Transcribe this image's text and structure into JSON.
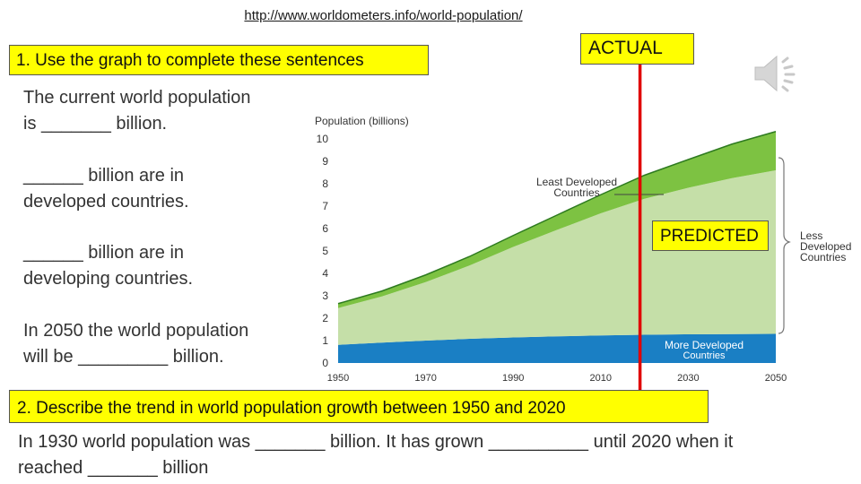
{
  "url_text": "http://www.worldometers.info/world-population/",
  "question1": "1. Use the graph to complete these sentences",
  "actual_label": "ACTUAL",
  "predicted_label": "PREDICTED",
  "sentences": [
    {
      "line1": "The current world population",
      "line2": "is _______ billion."
    },
    {
      "line1": "______ billion are in",
      "line2": "developed countries."
    },
    {
      "line1": "______ billion are in",
      "line2": "developing countries."
    },
    {
      "line1": "In 2050 the world population",
      "line2": "will be _________ billion."
    }
  ],
  "question2": "2.  Describe the trend in world population growth between 1950 and 2020",
  "bottom_line1": "In 1930 world population was _______ billion. It has grown __________ until 2020 when it",
  "bottom_line2": "reached _______ billion",
  "speaker_icon": "speaker-icon",
  "chart_data": {
    "type": "area",
    "ylabel": "Population (billions)",
    "xlabel": "",
    "x": [
      1950,
      1960,
      1970,
      1980,
      1990,
      2000,
      2010,
      2020,
      2030,
      2040,
      2050
    ],
    "xticks": [
      "1950",
      "1970",
      "1990",
      "2010",
      "2030",
      "2050"
    ],
    "yticks": [
      "0",
      "1",
      "2",
      "3",
      "4",
      "5",
      "6",
      "7",
      "8",
      "9",
      "10"
    ],
    "xlim": [
      1950,
      2050
    ],
    "ylim": [
      0,
      10
    ],
    "series": [
      {
        "name": "More Developed Countries",
        "color": "#1a7fc4",
        "values": [
          0.81,
          0.91,
          1.0,
          1.08,
          1.14,
          1.19,
          1.23,
          1.26,
          1.28,
          1.29,
          1.3
        ]
      },
      {
        "name": "Less Developed Countries",
        "color": "#c5dfa8",
        "values": [
          1.64,
          2.06,
          2.61,
          3.27,
          4.04,
          4.75,
          5.45,
          6.07,
          6.54,
          6.96,
          7.3
        ]
      },
      {
        "name": "Least Developed Countries",
        "color": "#7dc242",
        "values": [
          0.2,
          0.24,
          0.32,
          0.4,
          0.51,
          0.66,
          0.83,
          1.05,
          1.26,
          1.52,
          1.73
        ]
      }
    ],
    "annotations": [
      "Least Developed Countries",
      "Less Developed Countries",
      "More Developed Countries"
    ],
    "marker_year": 2020
  }
}
